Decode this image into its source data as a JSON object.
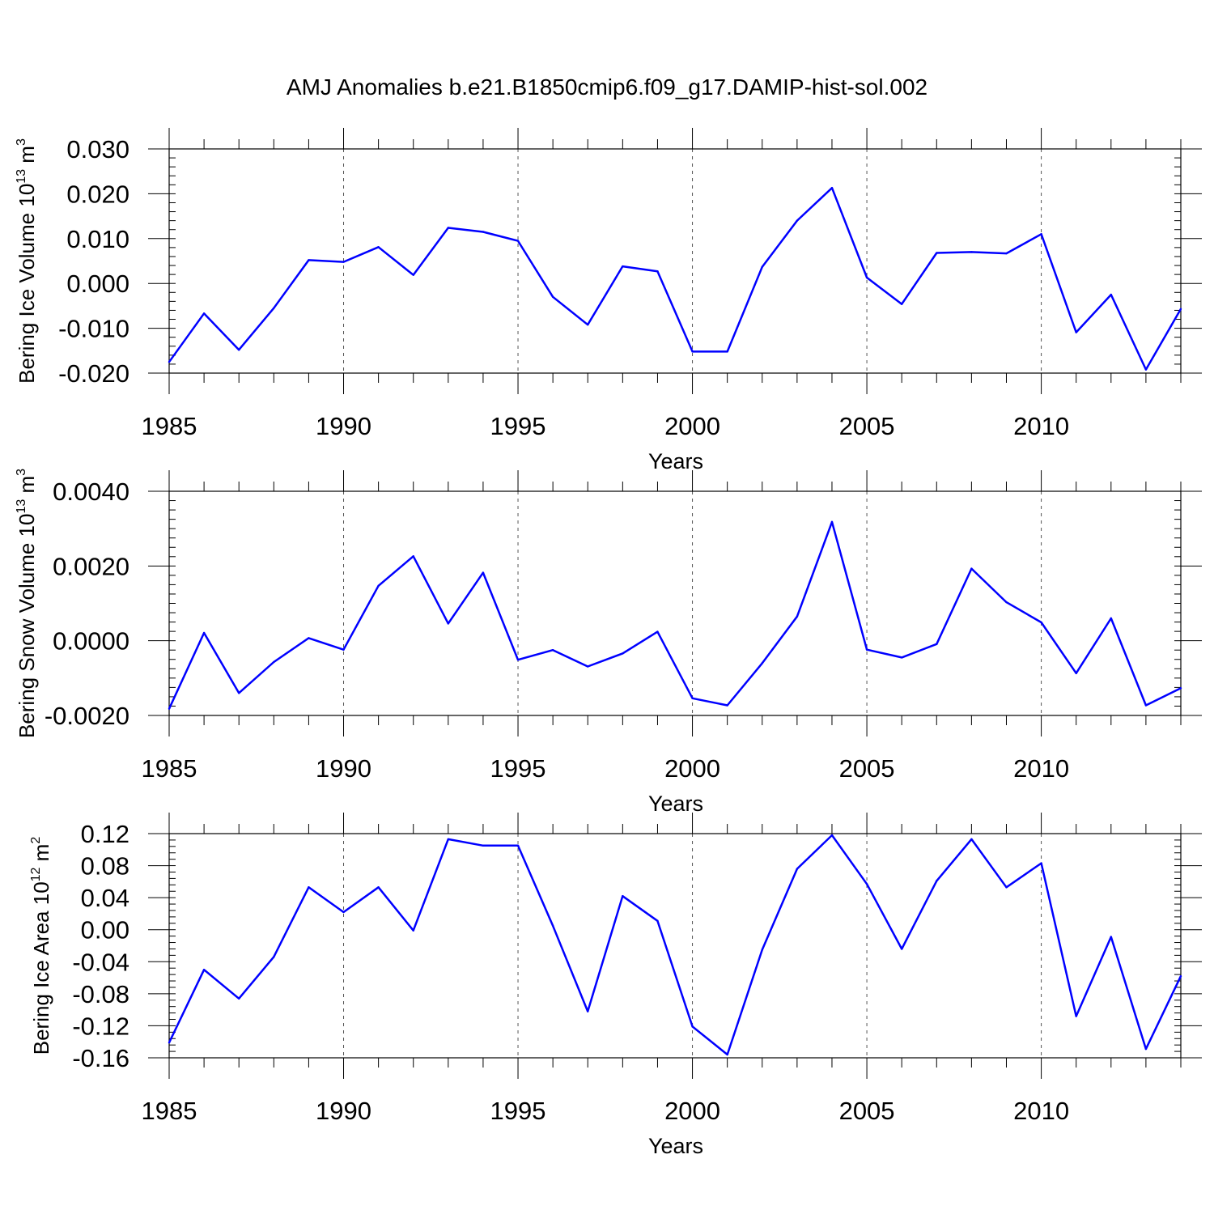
{
  "title": "AMJ Anomalies b.e21.B1850cmip6.f09_g17.DAMIP-hist-sol.002",
  "line_color": "#0000ff",
  "chart_data": [
    {
      "type": "line",
      "ylabel": {
        "prefix": "Bering Ice Volume 10",
        "exp": "13",
        "unit": " m",
        "unit_exp": "3"
      },
      "xlabel": "Years",
      "xlim": [
        1985,
        2014
      ],
      "ylim": [
        -0.02,
        0.03
      ],
      "x_ticks": [
        "1985",
        "1990",
        "1995",
        "2000",
        "2005",
        "2010"
      ],
      "y_ticks": [
        "-0.020",
        "-0.010",
        "0.000",
        "0.010",
        "0.020",
        "0.030"
      ],
      "y_tick_values": [
        -0.02,
        -0.01,
        0.0,
        0.01,
        0.02,
        0.03
      ],
      "y_minor_step": 0.002,
      "x": [
        1985,
        1986,
        1987,
        1988,
        1989,
        1990,
        1991,
        1992,
        1993,
        1994,
        1995,
        1996,
        1997,
        1998,
        1999,
        2000,
        2001,
        2002,
        2003,
        2004,
        2005,
        2006,
        2007,
        2008,
        2009,
        2010,
        2011,
        2012,
        2013,
        2014
      ],
      "values": [
        -0.0175,
        -0.0067,
        -0.0148,
        -0.0055,
        0.0052,
        0.0048,
        0.0081,
        0.0019,
        0.0124,
        0.0115,
        0.0095,
        -0.003,
        -0.0092,
        0.0038,
        0.0027,
        -0.0152,
        -0.0152,
        0.0037,
        0.014,
        0.0213,
        0.0013,
        -0.0046,
        0.0068,
        0.007,
        0.0067,
        0.011,
        -0.0109,
        -0.0025,
        -0.0192,
        -0.0057
      ]
    },
    {
      "type": "line",
      "ylabel": {
        "prefix": "Bering Snow Volume 10",
        "exp": "13",
        "unit": " m",
        "unit_exp": "3"
      },
      "xlabel": "Years",
      "xlim": [
        1985,
        2014
      ],
      "ylim": [
        -0.002,
        0.004
      ],
      "x_ticks": [
        "1985",
        "1990",
        "1995",
        "2000",
        "2005",
        "2010"
      ],
      "y_ticks": [
        "-0.0020",
        "0.0000",
        "0.0020",
        "0.0040"
      ],
      "y_tick_values": [
        -0.002,
        0.0,
        0.002,
        0.004
      ],
      "y_minor_step": 0.00025,
      "x": [
        1985,
        1986,
        1987,
        1988,
        1989,
        1990,
        1991,
        1992,
        1993,
        1994,
        1995,
        1996,
        1997,
        1998,
        1999,
        2000,
        2001,
        2002,
        2003,
        2004,
        2005,
        2006,
        2007,
        2008,
        2009,
        2010,
        2011,
        2012,
        2013,
        2014
      ],
      "values": [
        -0.00182,
        0.00021,
        -0.0014,
        -0.00057,
        7e-05,
        -0.00024,
        0.00147,
        0.00226,
        0.00046,
        0.00182,
        -0.00051,
        -0.00025,
        -0.00069,
        -0.00034,
        0.00024,
        -0.00154,
        -0.00173,
        -0.0006,
        0.00065,
        0.00318,
        -0.00024,
        -0.00045,
        -9e-05,
        0.00193,
        0.00103,
        0.00049,
        -0.00087,
        0.0006,
        -0.00173,
        -0.00127
      ]
    },
    {
      "type": "line",
      "ylabel": {
        "prefix": "Bering Ice Area 10",
        "exp": "12",
        "unit": " m",
        "unit_exp": "2"
      },
      "xlabel": "Years",
      "xlim": [
        1985,
        2014
      ],
      "ylim": [
        -0.16,
        0.12
      ],
      "x_ticks": [
        "1985",
        "1990",
        "1995",
        "2000",
        "2005",
        "2010"
      ],
      "y_ticks": [
        "-0.16",
        "-0.12",
        "-0.08",
        "-0.04",
        "0.00",
        "0.04",
        "0.08",
        "0.12"
      ],
      "y_tick_values": [
        -0.16,
        -0.12,
        -0.08,
        -0.04,
        0.0,
        0.04,
        0.08,
        0.12
      ],
      "y_minor_step": 0.008,
      "x": [
        1985,
        1986,
        1987,
        1988,
        1989,
        1990,
        1991,
        1992,
        1993,
        1994,
        1995,
        1996,
        1997,
        1998,
        1999,
        2000,
        2001,
        2002,
        2003,
        2004,
        2005,
        2006,
        2007,
        2008,
        2009,
        2010,
        2011,
        2012,
        2013,
        2014
      ],
      "values": [
        -0.141,
        -0.05,
        -0.086,
        -0.034,
        0.053,
        0.022,
        0.053,
        -0.001,
        0.113,
        0.105,
        0.105,
        0.005,
        -0.102,
        0.042,
        0.011,
        -0.121,
        -0.156,
        -0.025,
        0.076,
        0.118,
        0.057,
        -0.024,
        0.061,
        0.113,
        0.053,
        0.083,
        -0.108,
        -0.009,
        -0.149,
        -0.058
      ]
    }
  ]
}
